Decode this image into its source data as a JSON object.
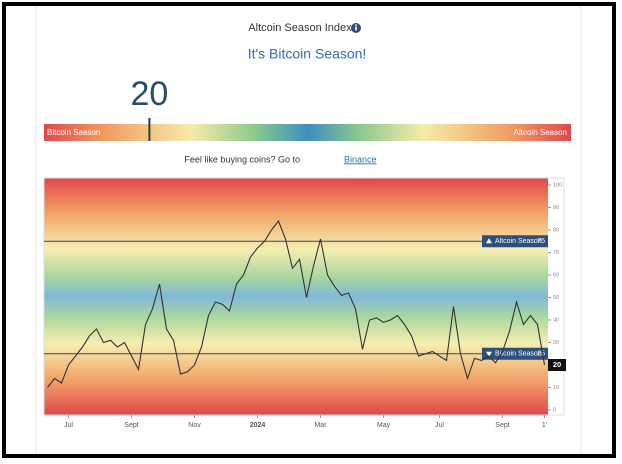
{
  "page": {
    "title": "Altcoin Season Index",
    "headline": "It's Bitcoin Season!",
    "gauge": {
      "value": 20,
      "min": 0,
      "max": 100,
      "left_label": "Bitcoin Season",
      "right_label": "Altcoin Season"
    },
    "promo": "Feel like buying coins? Go to",
    "link": "Binance"
  },
  "chart_data": {
    "type": "line",
    "color": "#333333",
    "categories": [
      null,
      null,
      null,
      "Jul",
      null,
      null,
      null,
      null,
      null,
      null,
      null,
      null,
      "Sept",
      null,
      null,
      null,
      null,
      null,
      null,
      null,
      null,
      "Nov",
      null,
      null,
      null,
      null,
      null,
      null,
      null,
      null,
      "2024",
      null,
      null,
      null,
      null,
      null,
      null,
      null,
      null,
      "Mar",
      null,
      null,
      null,
      null,
      null,
      null,
      null,
      null,
      "May",
      null,
      null,
      null,
      null,
      null,
      null,
      null,
      "Jul",
      null,
      null,
      null,
      null,
      null,
      null,
      null,
      null,
      "Sept",
      null,
      null,
      null,
      null,
      null,
      "1'"
    ],
    "values": [
      10,
      14,
      12,
      20,
      24,
      28,
      33,
      36,
      30,
      31,
      28,
      30,
      24,
      18,
      38,
      45,
      56,
      36,
      31,
      16,
      17,
      20,
      28,
      42,
      48,
      47,
      44,
      56,
      60,
      68,
      72,
      75,
      80,
      84,
      76,
      63,
      67,
      50,
      64,
      76,
      60,
      55,
      51,
      52,
      45,
      27,
      40,
      41,
      39,
      40,
      42,
      38,
      33,
      24,
      25,
      26,
      24,
      22,
      46,
      25,
      14,
      23,
      22,
      24,
      21,
      26,
      35,
      48,
      38,
      42,
      38,
      20
    ],
    "ylim": [
      0,
      100
    ],
    "yticks": [
      0,
      10,
      20,
      30,
      40,
      50,
      60,
      70,
      80,
      90,
      100
    ],
    "grid": false,
    "reference_lines": [
      {
        "value": 75,
        "label": "Altcoin Season"
      },
      {
        "value": 25,
        "label": "Bitcoin Season"
      }
    ]
  }
}
